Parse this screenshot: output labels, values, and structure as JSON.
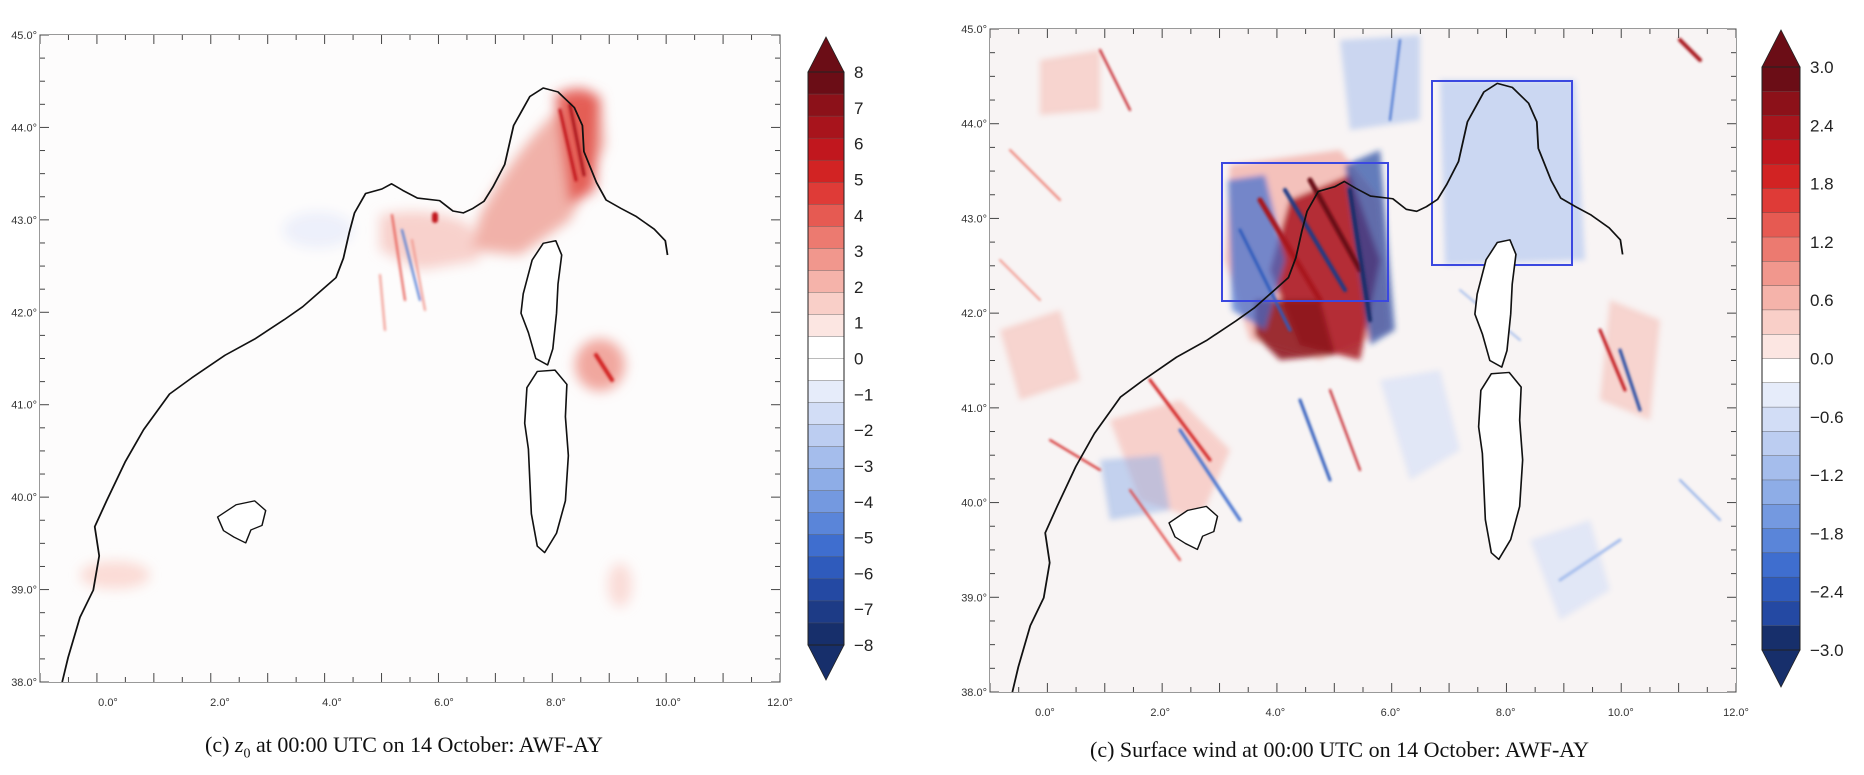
{
  "panels": [
    {
      "caption": {
        "prefix": "(c) ",
        "var_base": "z",
        "var_sub": "0",
        "rest": " at 00:00 UTC on 14 October: AWF-AY"
      },
      "lat_ticks": [
        "38.0°",
        "39.0°",
        "40.0°",
        "41.0°",
        "42.0°",
        "43.0°",
        "44.0°",
        "45.0°"
      ],
      "lon_ticks": [
        "0.0°",
        "2.0°",
        "4.0°",
        "6.0°",
        "8.0°",
        "10.0°",
        "12.0°"
      ],
      "colorbar": {
        "labels": [
          "8",
          "7",
          "6",
          "5",
          "4",
          "3",
          "2",
          "1",
          "0",
          "−1",
          "−2",
          "−3",
          "−4",
          "−5",
          "−6",
          "−7",
          "−8"
        ],
        "colors": [
          "#6b0d16",
          "#8c1119",
          "#a8141c",
          "#c1171e",
          "#d22323",
          "#df3b37",
          "#e65a52",
          "#ec7a70",
          "#f1978d",
          "#f5b3aa",
          "#f9cfc8",
          "#fce6e2",
          "#ffffff",
          "#ffffff",
          "#e6ecfa",
          "#d2ddf6",
          "#bccdf1",
          "#a5bdec",
          "#8eade7",
          "#7499e0",
          "#5a85d9",
          "#3f6ecf",
          "#2f5bbc",
          "#2449a3",
          "#1d3b86",
          "#172f6b"
        ]
      }
    },
    {
      "caption": {
        "text": "(c) Surface wind at 00:00 UTC on 14 October: AWF-AY"
      },
      "lat_ticks": [
        "38.0°",
        "39.0°",
        "40.0°",
        "41.0°",
        "42.0°",
        "43.0°",
        "44.0°",
        "45.0°"
      ],
      "lon_ticks": [
        "0.0°",
        "2.0°",
        "4.0°",
        "6.0°",
        "8.0°",
        "10.0°",
        "12.0°"
      ],
      "colorbar": {
        "labels": [
          "3.0",
          "2.4",
          "1.8",
          "1.2",
          "0.6",
          "0.0",
          "−0.6",
          "−1.2",
          "−1.8",
          "−2.4",
          "−3.0"
        ],
        "colors": [
          "#6b0d16",
          "#8c1119",
          "#a8141c",
          "#c1171e",
          "#d22323",
          "#df3b37",
          "#e65a52",
          "#ec7a70",
          "#f1978d",
          "#f5b3aa",
          "#f9cfc8",
          "#fce6e2",
          "#ffffff",
          "#e6ecfa",
          "#d2ddf6",
          "#bccdf1",
          "#a5bdec",
          "#8eade7",
          "#7499e0",
          "#5a85d9",
          "#3f6ecf",
          "#2f5bbc",
          "#2449a3",
          "#172f6b"
        ]
      }
    }
  ]
}
